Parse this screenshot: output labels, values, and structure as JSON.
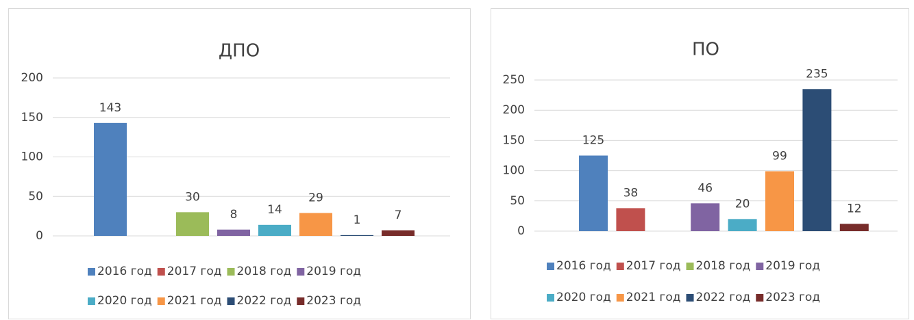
{
  "chart_data": [
    {
      "type": "bar",
      "title": "ДПО",
      "series": [
        {
          "name": "2016 год",
          "color": "#4f81bd",
          "values": [
            143
          ]
        },
        {
          "name": "2017 год",
          "color": "#c0504d",
          "values": [
            null
          ]
        },
        {
          "name": "2018 год",
          "color": "#9bbb59",
          "values": [
            30
          ]
        },
        {
          "name": "2019 год",
          "color": "#8064a2",
          "values": [
            8
          ]
        },
        {
          "name": "2020 год",
          "color": "#4bacc6",
          "values": [
            14
          ]
        },
        {
          "name": "2021 год",
          "color": "#f79646",
          "values": [
            29
          ]
        },
        {
          "name": "2022 год",
          "color": "#2c4d75",
          "values": [
            1
          ]
        },
        {
          "name": "2023 год",
          "color": "#772c2a",
          "values": [
            7
          ]
        }
      ],
      "ylim": [
        0,
        200
      ],
      "yticks": [
        0,
        50,
        100,
        150,
        200
      ],
      "grid": true,
      "legend": "bottom"
    },
    {
      "type": "bar",
      "title": "ПО",
      "series": [
        {
          "name": "2016 год",
          "color": "#4f81bd",
          "values": [
            125
          ]
        },
        {
          "name": "2017 год",
          "color": "#c0504d",
          "values": [
            38
          ]
        },
        {
          "name": "2018 год",
          "color": "#9bbb59",
          "values": [
            null
          ]
        },
        {
          "name": "2019 год",
          "color": "#8064a2",
          "values": [
            46
          ]
        },
        {
          "name": "2020 год",
          "color": "#4bacc6",
          "values": [
            20
          ]
        },
        {
          "name": "2021 год",
          "color": "#f79646",
          "values": [
            99
          ]
        },
        {
          "name": "2022 год",
          "color": "#2c4d75",
          "values": [
            235
          ]
        },
        {
          "name": "2023 год",
          "color": "#772c2a",
          "values": [
            12
          ]
        }
      ],
      "ylim": [
        0,
        250
      ],
      "yticks": [
        0,
        50,
        100,
        150,
        200,
        250
      ],
      "grid": true,
      "legend": "bottom"
    }
  ]
}
